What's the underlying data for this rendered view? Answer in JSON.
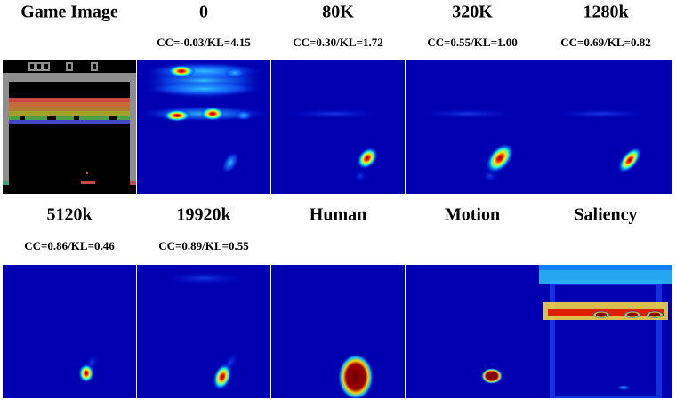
{
  "panels": [
    {
      "title": "Game Image"
    },
    {
      "title": "0",
      "caption": "CC=-0.03/KL=4.15"
    },
    {
      "title": "80K",
      "caption": "CC=0.30/KL=1.72"
    },
    {
      "title": "320K",
      "caption": "CC=0.55/KL=1.00"
    },
    {
      "title": "1280k",
      "caption": "CC=0.69/KL=0.82"
    },
    {
      "title": "5120k",
      "caption": "CC=0.86/KL=0.46"
    },
    {
      "title": "19920k",
      "caption": "CC=0.89/KL=0.55"
    },
    {
      "title": "Human"
    },
    {
      "title": "Motion"
    },
    {
      "title": "Saliency"
    }
  ]
}
